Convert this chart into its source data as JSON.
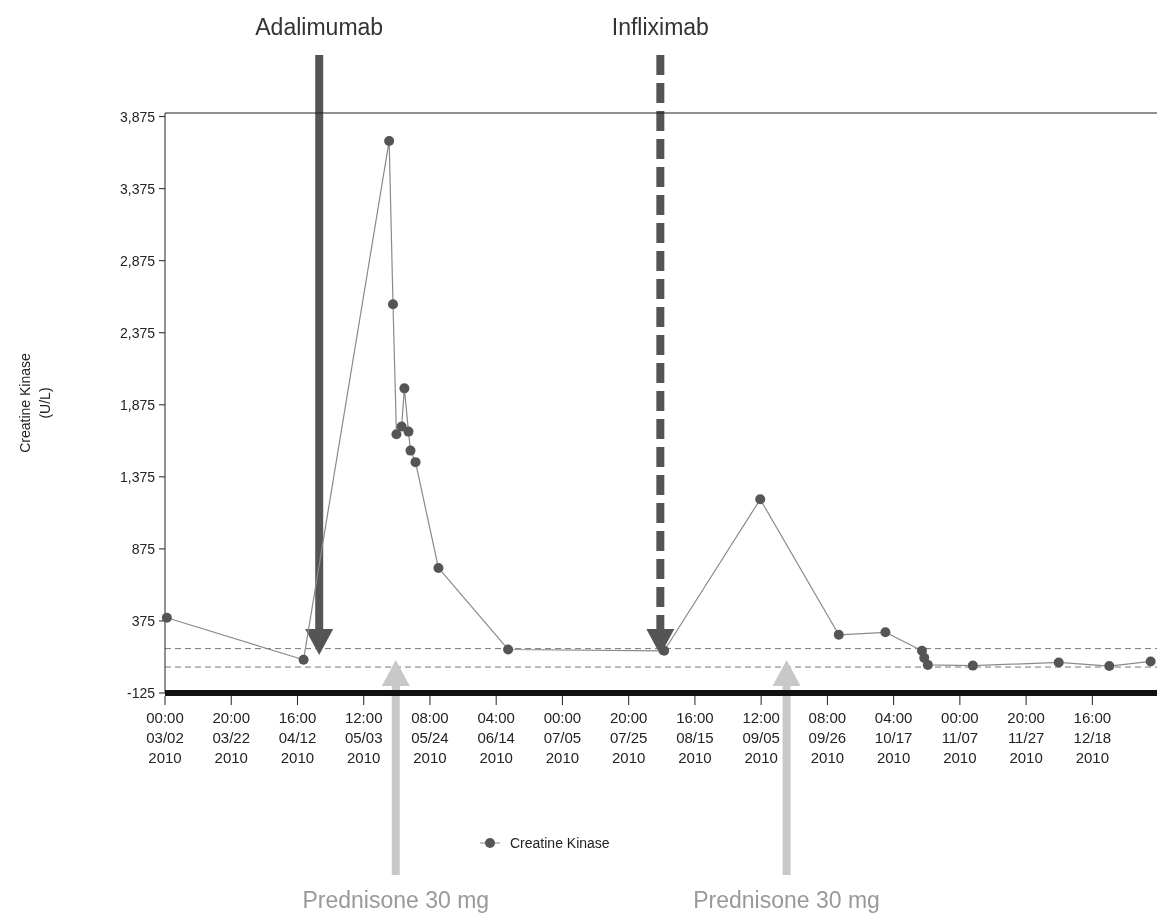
{
  "chart_data": {
    "type": "line",
    "ylabel": "Creatine Kinase\n(U/L)",
    "x": [
      "2010-03-02T14:00",
      "2010-04-14T14:00",
      "2010-05-11T12:00",
      "2010-05-12T17:00",
      "2010-05-13T19:00",
      "2010-05-15T10:00",
      "2010-05-16T07:00",
      "2010-05-17T14:00",
      "2010-05-18T05:00",
      "2010-05-19T19:00",
      "2010-05-27T00:00",
      "2010-06-17T22:00",
      "2010-08-06T00:00",
      "2010-09-05T05:00",
      "2010-09-29T22:00",
      "2010-10-14T14:00",
      "2010-10-26T02:00",
      "2010-10-26T19:00",
      "2010-10-27T22:00",
      "2010-11-11T02:00",
      "2010-12-08T02:00",
      "2010-12-24T00:00",
      "2011-01-06T00:00"
    ],
    "series": [
      {
        "name": "Creatine Kinase",
        "color": "#555555",
        "values": [
          397,
          106,
          3706,
          2573,
          1671,
          1724,
          1989,
          1689,
          1557,
          1477,
          743,
          177,
          168,
          1219,
          279,
          296,
          168,
          119,
          70,
          65,
          87,
          62,
          94
        ]
      }
    ],
    "marker": "circle",
    "legend": "bottom",
    "grid": false,
    "xlim": [
      "2010-03-02T00:00",
      "2011-01-08T00:00"
    ],
    "xticks": [
      {
        "value": "2010-03-02T00:00",
        "label": "00:00\n03/02\n2010"
      },
      {
        "value": "2010-03-22T20:00",
        "label": "20:00\n03/22\n2010"
      },
      {
        "value": "2010-04-12T16:00",
        "label": "16:00\n04/12\n2010"
      },
      {
        "value": "2010-05-03T12:00",
        "label": "12:00\n05/03\n2010"
      },
      {
        "value": "2010-05-24T08:00",
        "label": "08:00\n05/24\n2010"
      },
      {
        "value": "2010-06-14T04:00",
        "label": "04:00\n06/14\n2010"
      },
      {
        "value": "2010-07-05T00:00",
        "label": "00:00\n07/05\n2010"
      },
      {
        "value": "2010-07-25T20:00",
        "label": "20:00\n07/25\n2010"
      },
      {
        "value": "2010-08-15T16:00",
        "label": "16:00\n08/15\n2010"
      },
      {
        "value": "2010-09-05T12:00",
        "label": "12:00\n09/05\n2010"
      },
      {
        "value": "2010-09-26T08:00",
        "label": "08:00\n09/26\n2010"
      },
      {
        "value": "2010-10-17T04:00",
        "label": "04:00\n10/17\n2010"
      },
      {
        "value": "2010-11-07T00:00",
        "label": "00:00\n11/07\n2010"
      },
      {
        "value": "2010-11-27T20:00",
        "label": "20:00\n11/27\n2010"
      },
      {
        "value": "2010-12-18T16:00",
        "label": "16:00\n12/18\n2010"
      }
    ],
    "ylim": [
      -125,
      3900
    ],
    "yticks": [
      {
        "value": -125,
        "label": "-125"
      },
      {
        "value": 375,
        "label": "375"
      },
      {
        "value": 875,
        "label": "875"
      },
      {
        "value": 1375,
        "label": "1,375"
      },
      {
        "value": 1875,
        "label": "1,875"
      },
      {
        "value": 2375,
        "label": "2,375"
      },
      {
        "value": 2875,
        "label": "2,875"
      },
      {
        "value": 3375,
        "label": "3,375"
      },
      {
        "value": 3875,
        "label": "3,875"
      }
    ],
    "ref_lines": [
      {
        "axis": "y",
        "value": 183,
        "color": "#777777",
        "line_style": "dashed"
      },
      {
        "axis": "y",
        "value": 55,
        "color": "#777777",
        "line_style": "dashed"
      },
      {
        "axis": "x",
        "value": "2010-04-19T12:00",
        "label": "Adalimumab",
        "color": "#555555",
        "line_style": "solid"
      },
      {
        "axis": "x",
        "value": "2010-08-04T19:00",
        "label": "Infliximab",
        "color": "#555555",
        "line_style": "dashed"
      },
      {
        "axis": "x",
        "value": "2010-05-13T14:00",
        "label": "Prednisone 30 mg",
        "color": "#c8c8c8",
        "line_style": "solid"
      },
      {
        "axis": "x",
        "value": "2010-09-13T12:00",
        "label": "Prednisone 30 mg",
        "color": "#c8c8c8",
        "line_style": "solid"
      }
    ]
  }
}
